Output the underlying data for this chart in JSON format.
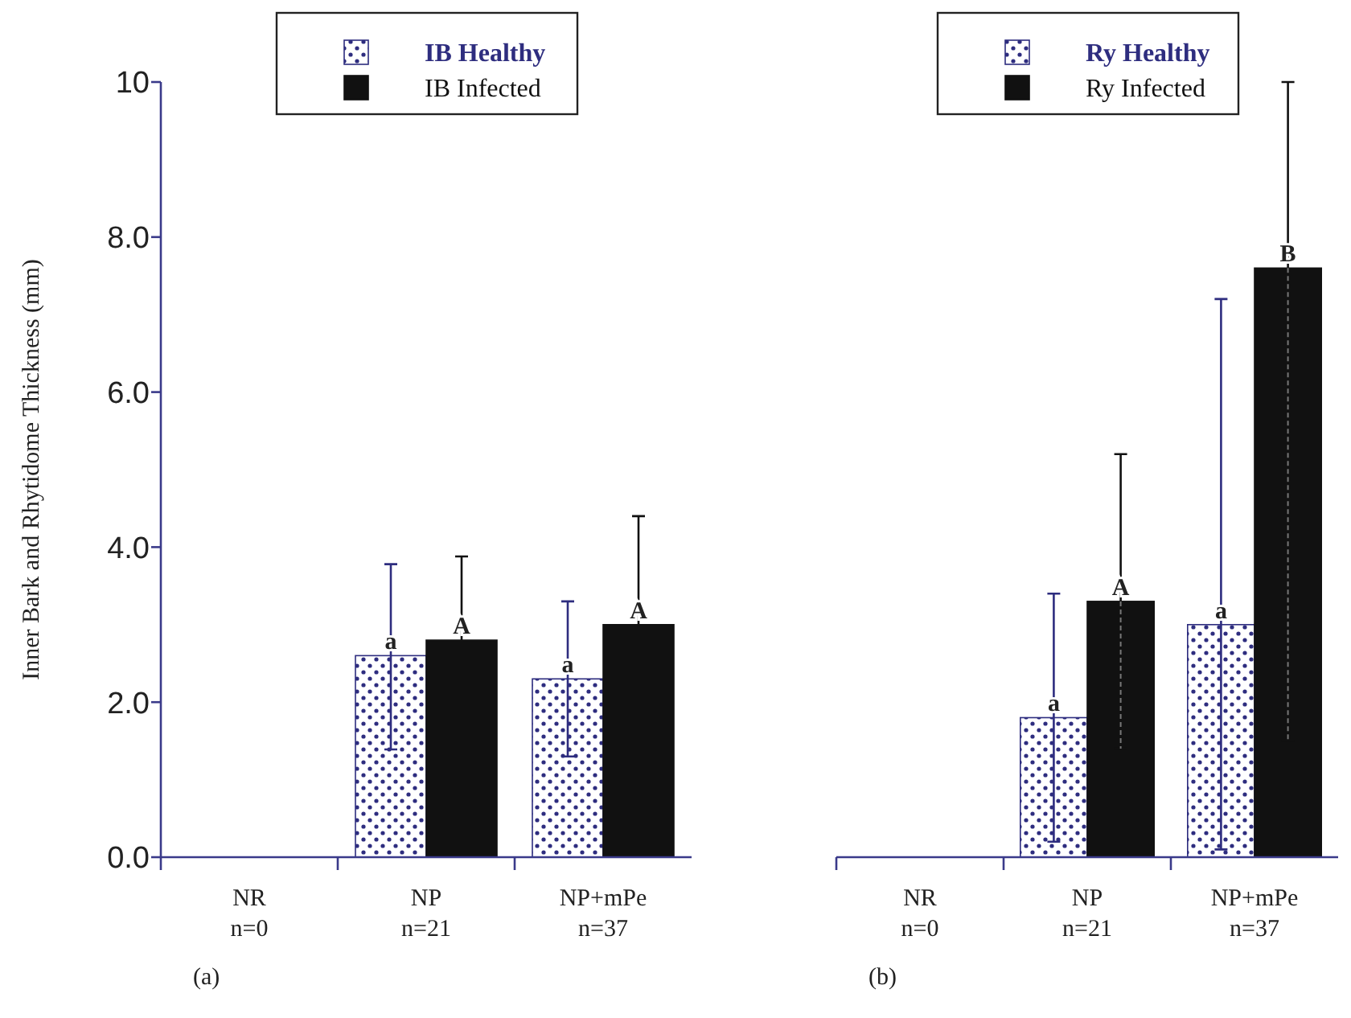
{
  "chart_data": [
    {
      "type": "bar",
      "ylabel": "Inner Bark and Rhytidome Thickness (mm)",
      "categories": [
        "NR\nn=0",
        "NP\nn=21",
        "NP+mPe\nn=37"
      ],
      "series": [
        {
          "name": "IB Healthy",
          "color": "#2e2d7f",
          "values": [
            null,
            2.6,
            2.3
          ],
          "errors": [
            null,
            [
              1.39,
              3.78
            ],
            [
              1.3,
              3.3
            ]
          ]
        },
        {
          "name": "IB Infected",
          "color": "#111111",
          "values": [
            null,
            2.8,
            3.0
          ],
          "errors": [
            null,
            [
              2.8,
              3.88
            ],
            [
              3.0,
              4.4
            ]
          ]
        }
      ],
      "ylim": [
        0,
        10
      ],
      "yticks": [
        {
          "value": 0,
          "label": "0.0"
        },
        {
          "value": 2,
          "label": "2.0"
        },
        {
          "value": 4,
          "label": "4.0"
        },
        {
          "value": 6,
          "label": "6.0"
        },
        {
          "value": 8,
          "label": "8.0"
        },
        10
      ],
      "legend": "top",
      "annotations": [
        {
          "text": "a",
          "x": "NP\nn=21",
          "y": 2.6
        },
        {
          "text": "A",
          "x": "NP\nn=21",
          "y": 2.8
        },
        {
          "text": "a",
          "x": "NP+mPe\nn=37",
          "y": 2.3
        },
        {
          "text": "A",
          "x": "NP+mPe\nn=37",
          "y": 3.0
        },
        "(a)"
      ]
    },
    {
      "type": "bar",
      "categories": [
        "NR\nn=0",
        "NP\nn=21",
        "NP+mPe\nn=37"
      ],
      "series": [
        {
          "name": "Ry Healthy",
          "color": "#2e2d7f",
          "values": [
            null,
            1.8,
            3.0
          ],
          "errors": [
            null,
            [
              0.2,
              3.4
            ],
            [
              0.1,
              7.2
            ]
          ]
        },
        {
          "name": "Ry Infected",
          "color": "#111111",
          "values": [
            null,
            3.3,
            7.6
          ],
          "errors": [
            null,
            [
              1.4,
              5.2
            ],
            [
              1.5,
              10.0
            ]
          ]
        }
      ],
      "ylim": [
        0,
        10
      ],
      "tick_labels": "x",
      "legend": "top",
      "annotations": [
        {
          "text": "a",
          "x": "NP\nn=21",
          "y": 1.8
        },
        {
          "text": "A",
          "x": "NP\nn=21",
          "y": 3.3
        },
        {
          "text": "a",
          "x": "NP+mPe\nn=37",
          "y": 3.0
        },
        {
          "text": "B",
          "x": "NP+mPe\nn=37",
          "y": 7.6
        },
        "(b)"
      ]
    }
  ]
}
